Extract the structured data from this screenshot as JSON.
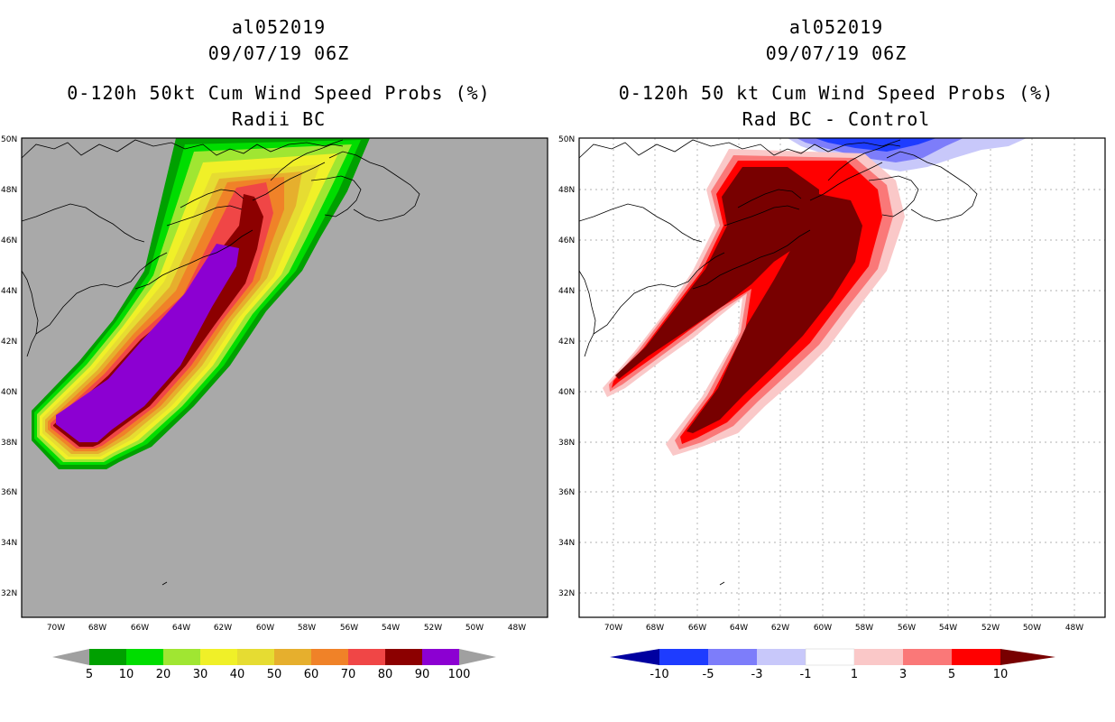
{
  "panels": [
    {
      "storm_id": "al052019",
      "datetime": "09/07/19 06Z",
      "title": "0-120h 50kt Cum Wind Speed Probs (%)",
      "subtitle": "Radii BC",
      "background_color": "#a9a9a9",
      "colorbar": {
        "labels": [
          "5",
          "10",
          "20",
          "30",
          "40",
          "50",
          "60",
          "70",
          "80",
          "90",
          "100"
        ],
        "colors": [
          "#a0a0a0",
          "#00a000",
          "#00dd00",
          "#a0e632",
          "#f0f028",
          "#e6dc32",
          "#e6af2d",
          "#f08228",
          "#f04646",
          "#8c0000",
          "#8c00d2",
          "#a0a0a0"
        ]
      }
    },
    {
      "storm_id": "al052019",
      "datetime": "09/07/19 06Z",
      "title": "0-120h 50 kt Cum Wind Speed Probs (%)",
      "subtitle": "Rad BC - Control",
      "background_color": "#ffffff",
      "colorbar": {
        "labels": [
          "-10",
          "-5",
          "-3",
          "-1",
          "1",
          "3",
          "5",
          "10"
        ],
        "colors": [
          "#0000a0",
          "#1e3cff",
          "#7d7dfa",
          "#c8c8fa",
          "#ffffff",
          "#fac8c8",
          "#fa7878",
          "#ff0000",
          "#780000"
        ]
      }
    }
  ],
  "axes": {
    "lat_labels": [
      "50N",
      "48N",
      "46N",
      "44N",
      "42N",
      "40N",
      "38N",
      "36N",
      "34N",
      "32N"
    ],
    "lon_labels": [
      "70W",
      "68W",
      "66W",
      "64W",
      "62W",
      "60W",
      "58W",
      "56W",
      "54W",
      "52W",
      "50W",
      "48W"
    ]
  }
}
